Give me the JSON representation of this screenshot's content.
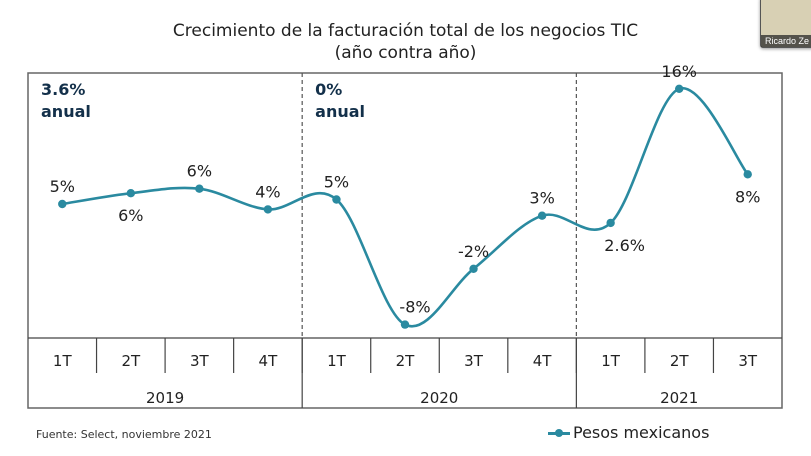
{
  "header": {
    "title_line1": "Crecimiento de la facturación total de los negocios TIC",
    "title_line2": "(año contra año)"
  },
  "video_thumbnail": {
    "participant_name": "Ricardo Ze"
  },
  "footer": {
    "source": "Fuente: Select, noviembre 2021"
  },
  "colors": {
    "series": "#2a8aa0",
    "annotation": "#13304a"
  },
  "chart_data": {
    "type": "line",
    "title": "Crecimiento de la facturación total de los negocios TIC (año contra año)",
    "xlabel": "",
    "ylabel": "",
    "grid": false,
    "legend": {
      "position": "bottom-right",
      "entries": [
        "Pesos mexicanos"
      ]
    },
    "categories": [
      "1T",
      "2T",
      "3T",
      "4T",
      "1T",
      "2T",
      "3T",
      "4T",
      "1T",
      "2T",
      "3T"
    ],
    "groups": [
      {
        "label": "2019",
        "count": 4,
        "annotation_line1": "3.6%",
        "annotation_line2": "anual"
      },
      {
        "label": "2020",
        "count": 4,
        "annotation_line1": "0%",
        "annotation_line2": "anual"
      },
      {
        "label": "2021",
        "count": 3,
        "annotation_line1": "",
        "annotation_line2": ""
      }
    ],
    "series": [
      {
        "name": "Pesos mexicanos",
        "values": [
          5,
          6,
          6,
          4,
          5,
          -8,
          -2,
          3,
          2.6,
          16,
          8
        ],
        "labels": [
          "5%",
          "6%",
          "6%",
          "4%",
          "5%",
          "-8%",
          "-2%",
          "3%",
          "2.6%",
          "16%",
          "8%"
        ],
        "plot_y": [
          5.0,
          6.2,
          6.7,
          4.4,
          5.5,
          -8.4,
          -2.2,
          3.7,
          2.9,
          17.8,
          8.3
        ]
      }
    ],
    "ylim": [
      -10,
      20
    ]
  }
}
